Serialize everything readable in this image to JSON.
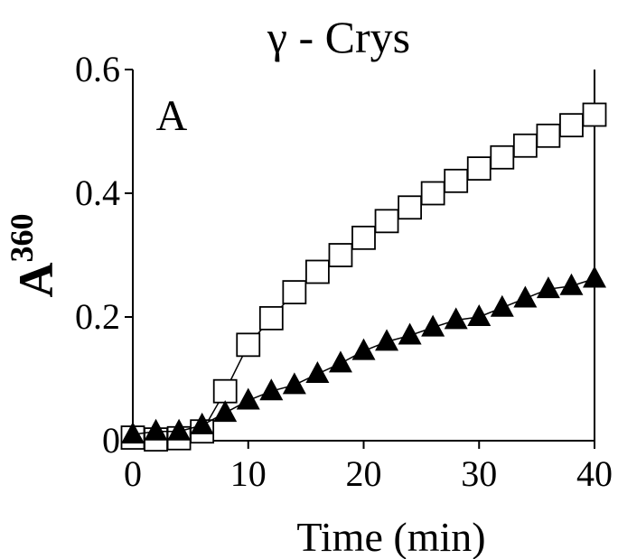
{
  "chart_data": {
    "type": "scatter",
    "title": "γ - Crys",
    "panel_label": "A",
    "xlabel": "Time (min)",
    "ylabel": {
      "main": "A",
      "superscript": "360"
    },
    "xlim": [
      0,
      40
    ],
    "ylim": [
      0,
      0.6
    ],
    "xticks": [
      0,
      10,
      20,
      30,
      40
    ],
    "xtick_labels": [
      "0",
      "10",
      "20",
      "30",
      "40"
    ],
    "yticks": [
      0,
      0.2,
      0.4,
      0.6
    ],
    "ytick_labels": [
      "0",
      "0.2",
      "0.4",
      "0.6"
    ],
    "grid": false,
    "series": [
      {
        "marker": "open-square",
        "color": "#000000",
        "connected": true,
        "x": [
          0,
          2,
          4,
          6,
          8,
          10,
          12,
          14,
          16,
          18,
          20,
          22,
          24,
          26,
          28,
          30,
          32,
          34,
          36,
          38,
          40
        ],
        "y": [
          0.005,
          0.002,
          0.004,
          0.015,
          0.08,
          0.155,
          0.198,
          0.24,
          0.273,
          0.3,
          0.328,
          0.355,
          0.377,
          0.4,
          0.42,
          0.44,
          0.458,
          0.477,
          0.493,
          0.51,
          0.527
        ]
      },
      {
        "marker": "filled-triangle",
        "color": "#000000",
        "connected": true,
        "x": [
          0,
          2,
          4,
          6,
          8,
          10,
          12,
          14,
          16,
          18,
          20,
          22,
          24,
          26,
          28,
          30,
          32,
          34,
          36,
          38,
          40
        ],
        "y": [
          0.01,
          0.015,
          0.015,
          0.025,
          0.045,
          0.065,
          0.08,
          0.09,
          0.108,
          0.125,
          0.145,
          0.16,
          0.17,
          0.183,
          0.195,
          0.2,
          0.215,
          0.23,
          0.245,
          0.25,
          0.262
        ]
      }
    ]
  }
}
